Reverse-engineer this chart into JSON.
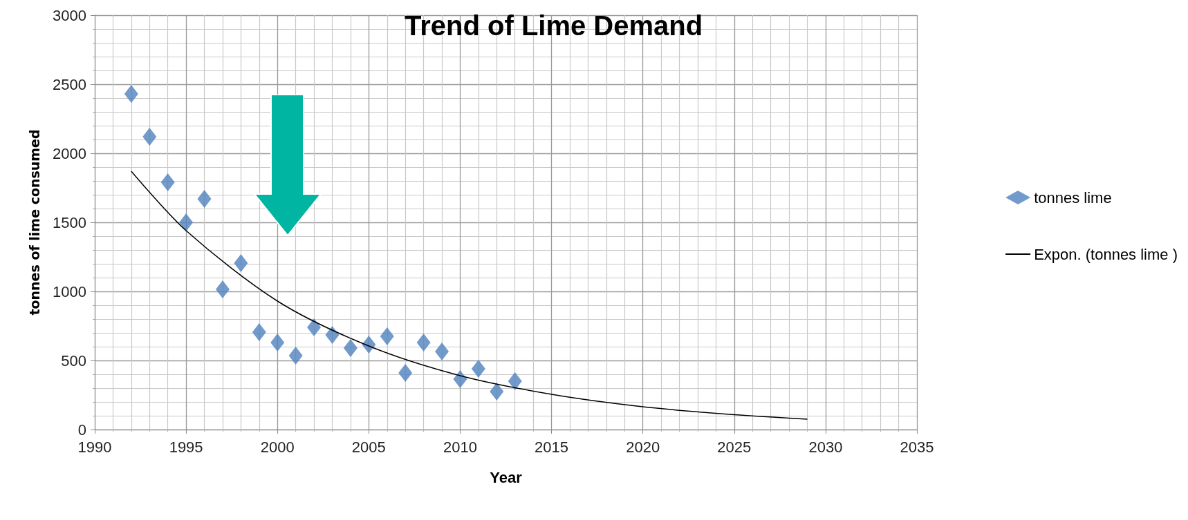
{
  "chart_data": {
    "type": "scatter",
    "title": "Trend of Lime Demand",
    "xlabel": "Year",
    "ylabel": "tonnes of lime consumed",
    "x": [
      1992,
      1993,
      1994,
      1995,
      1996,
      1997,
      1998,
      1999,
      2000,
      2001,
      2002,
      2003,
      2004,
      2005,
      2006,
      2007,
      2008,
      2009,
      2010,
      2011,
      2012,
      2013
    ],
    "series": [
      {
        "name": "tonnes lime",
        "color": "#4f81bd",
        "marker": "diamond",
        "values": [
          2430,
          2120,
          1790,
          1500,
          1670,
          1015,
          1205,
          705,
          630,
          535,
          740,
          685,
          590,
          615,
          675,
          410,
          630,
          565,
          365,
          440,
          275,
          350
        ]
      },
      {
        "name": "Expon. (tonnes lime )",
        "type": "line",
        "color": "#000000",
        "marker": "none",
        "line_style": "solid",
        "x": [
          1992,
          1995,
          2000,
          2005,
          2010,
          2015,
          2020,
          2025,
          2029
        ],
        "values": [
          1870,
          1440,
          930,
          605,
          390,
          255,
          165,
          107,
          75
        ]
      }
    ],
    "xlim": [
      1990,
      2035
    ],
    "xticks": [
      1990,
      1995,
      2000,
      2005,
      2010,
      2015,
      2020,
      2025,
      2030,
      2035
    ],
    "ylim": [
      0,
      3000
    ],
    "yticks": [
      0,
      500,
      1000,
      1500,
      2000,
      2500,
      3000
    ],
    "grid": true,
    "legend": "right"
  }
}
